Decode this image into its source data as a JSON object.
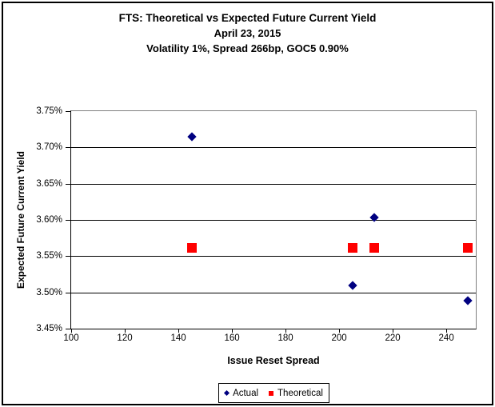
{
  "chart_data": {
    "type": "scatter",
    "title_lines": [
      "FTS: Theoretical vs Expected Future Current Yield",
      "April 23, 2015",
      "Volatility 1%, Spread 266bp, GOC5 0.90%"
    ],
    "xlabel": "Issue Reset Spread",
    "ylabel": "Expected Future Current Yield",
    "xlim": [
      100,
      251
    ],
    "ylim": [
      3.45,
      3.75
    ],
    "xticks": [
      100,
      120,
      140,
      160,
      180,
      200,
      220,
      240
    ],
    "xtick_labels": [
      "100",
      "120",
      "140",
      "160",
      "180",
      "200",
      "220",
      "240"
    ],
    "yticks": [
      3.45,
      3.5,
      3.55,
      3.6,
      3.65,
      3.7,
      3.75
    ],
    "ytick_labels": [
      "3.45%",
      "3.50%",
      "3.55%",
      "3.60%",
      "3.65%",
      "3.70%",
      "3.75%"
    ],
    "grid": "horizontal-black",
    "plot_border_color": "#808080",
    "legend_position": "bottom",
    "series": [
      {
        "name": "Actual",
        "marker": "diamond",
        "color": "#000080",
        "points": [
          [
            145,
            3.715
          ],
          [
            205,
            3.51
          ],
          [
            213,
            3.603
          ],
          [
            248,
            3.489
          ]
        ]
      },
      {
        "name": "Theoretical",
        "marker": "square",
        "color": "#FF0000",
        "points": [
          [
            145,
            3.561
          ],
          [
            205,
            3.561
          ],
          [
            213,
            3.561
          ],
          [
            248,
            3.561
          ]
        ]
      }
    ]
  }
}
